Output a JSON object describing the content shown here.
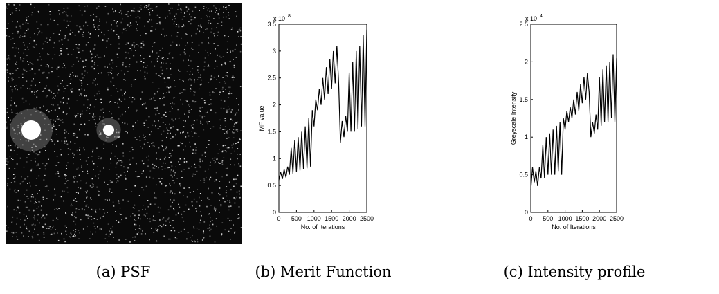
{
  "captions": [
    "(a) PSF",
    "(b) Merit Function",
    "(c) Intensity profile"
  ],
  "chart_data": [
    {
      "type": "line",
      "xlabel": "No. of Iterations",
      "ylabel": "MF value",
      "y_scale_label": "x 10",
      "y_scale_exponent": "8",
      "xlim": [
        0,
        2500
      ],
      "xticks": [
        0,
        500,
        1000,
        1500,
        2000,
        2500
      ],
      "ylim": [
        0,
        3.5
      ],
      "yticks": [
        0,
        0.5,
        1,
        1.5,
        2,
        2.5,
        3,
        3.5
      ],
      "color": "#000000",
      "x": [
        0,
        50,
        100,
        150,
        200,
        250,
        300,
        350,
        400,
        450,
        500,
        550,
        600,
        650,
        700,
        750,
        800,
        850,
        900,
        950,
        1000,
        1050,
        1100,
        1150,
        1200,
        1250,
        1300,
        1350,
        1400,
        1450,
        1500,
        1550,
        1600,
        1650,
        1700,
        1750,
        1800,
        1850,
        1900,
        1950,
        2000,
        2050,
        2100,
        2150,
        2200,
        2250,
        2300,
        2350,
        2400,
        2450,
        2500
      ],
      "values": [
        0.6,
        0.75,
        0.62,
        0.8,
        0.65,
        0.85,
        0.7,
        1.2,
        0.72,
        1.35,
        0.75,
        1.4,
        0.78,
        1.5,
        0.8,
        1.6,
        0.82,
        1.75,
        0.85,
        1.9,
        1.6,
        2.1,
        1.9,
        2.3,
        2.0,
        2.5,
        2.1,
        2.7,
        2.2,
        2.85,
        2.3,
        3.0,
        2.4,
        3.1,
        2.4,
        1.3,
        1.7,
        1.4,
        1.8,
        1.5,
        2.6,
        1.5,
        2.8,
        1.5,
        3.0,
        1.55,
        3.1,
        1.6,
        3.3,
        1.6,
        3.4
      ]
    },
    {
      "type": "line",
      "xlabel": "No. of Iterations",
      "ylabel": "Greyscale Intensity",
      "y_scale_label": "x 10",
      "y_scale_exponent": "4",
      "xlim": [
        0,
        2500
      ],
      "xticks": [
        0,
        500,
        1000,
        1500,
        2000,
        2500
      ],
      "ylim": [
        0,
        2.5
      ],
      "yticks": [
        0,
        0.5,
        1,
        1.5,
        2,
        2.5
      ],
      "color": "#000000",
      "x": [
        0,
        50,
        100,
        150,
        200,
        250,
        300,
        350,
        400,
        450,
        500,
        550,
        600,
        650,
        700,
        750,
        800,
        850,
        900,
        950,
        1000,
        1050,
        1100,
        1150,
        1200,
        1250,
        1300,
        1350,
        1400,
        1450,
        1500,
        1550,
        1600,
        1650,
        1700,
        1750,
        1800,
        1850,
        1900,
        1950,
        2000,
        2050,
        2100,
        2150,
        2200,
        2250,
        2300,
        2350,
        2400,
        2450,
        2500
      ],
      "values": [
        0.3,
        0.6,
        0.4,
        0.55,
        0.35,
        0.6,
        0.45,
        0.9,
        0.45,
        1.0,
        0.5,
        1.05,
        0.5,
        1.1,
        0.5,
        1.15,
        0.55,
        1.2,
        0.5,
        1.25,
        1.1,
        1.35,
        1.2,
        1.4,
        1.25,
        1.5,
        1.3,
        1.6,
        1.35,
        1.7,
        1.45,
        1.8,
        1.5,
        1.85,
        1.6,
        1.0,
        1.2,
        1.05,
        1.3,
        1.1,
        1.8,
        1.15,
        1.9,
        1.2,
        1.95,
        1.2,
        2.0,
        1.25,
        2.1,
        1.2,
        2.05
      ]
    }
  ]
}
